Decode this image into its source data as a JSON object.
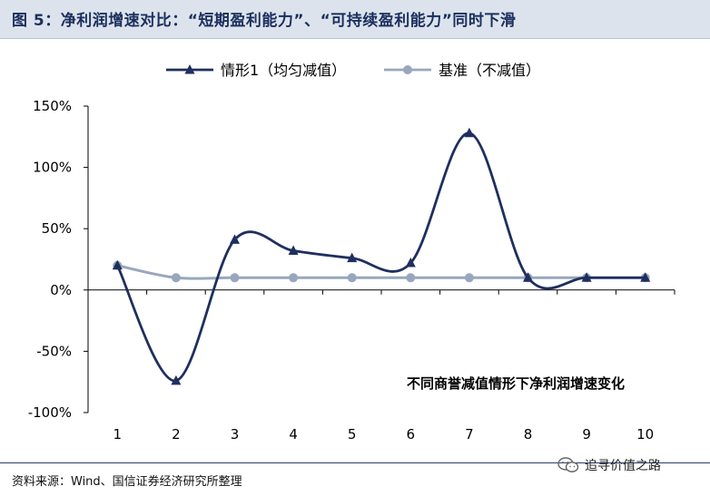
{
  "figure_title": "图 5：净利润增速对比：“短期盈利能力”、“可持续盈利能力”同时下滑",
  "source_note": "资料来源：Wind、国信证券经济研究所整理",
  "watermark": "追寻价值之路",
  "icons": {
    "watermark": "wechat-icon"
  },
  "colors": {
    "scenario1": "#1f2f5e",
    "baseline": "#98a7bd",
    "title_bg": "#dde3ec"
  },
  "chart_data": {
    "type": "line",
    "annotation": "不同商誉减值情形下净利润增速变化",
    "categories": [
      "1",
      "2",
      "3",
      "4",
      "5",
      "6",
      "7",
      "8",
      "9",
      "10"
    ],
    "ylim": [
      -100,
      150
    ],
    "yticks": [
      -100,
      -50,
      0,
      50,
      100,
      150
    ],
    "ytick_labels": [
      "-100%",
      "-50%",
      "0%",
      "50%",
      "100%",
      "150%"
    ],
    "ylabel": "",
    "xlabel": "",
    "legend_position": "top-center",
    "grid": false,
    "smoothed": true,
    "series": [
      {
        "name": "情形1（均匀减值）",
        "marker": "triangle",
        "color": "#1f2f5e",
        "values": [
          20,
          -74,
          41,
          32,
          26,
          22,
          128,
          10,
          10,
          10
        ]
      },
      {
        "name": "基准（不减值）",
        "marker": "circle",
        "color": "#98a7bd",
        "values": [
          20,
          10,
          10,
          10,
          10,
          10,
          10,
          10,
          10,
          10
        ]
      }
    ]
  }
}
